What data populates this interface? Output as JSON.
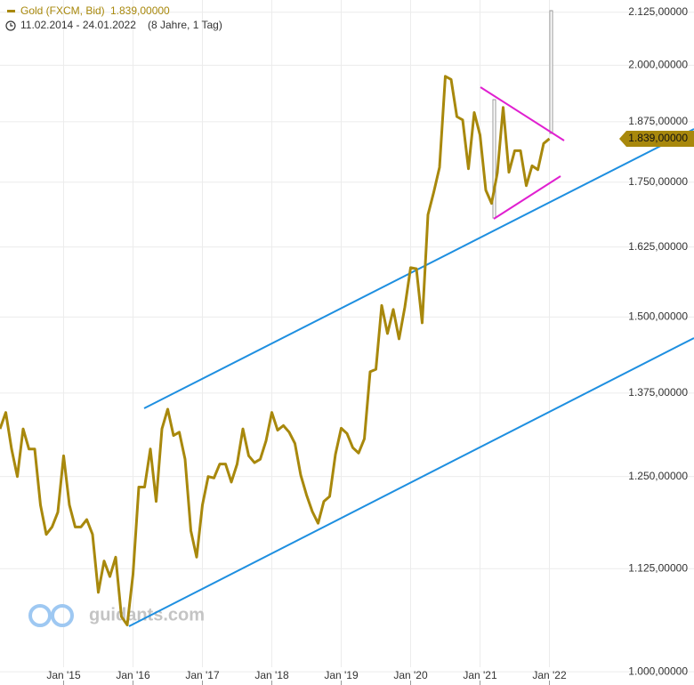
{
  "chart_data": {
    "type": "line",
    "title": "Gold (FXCM, Bid)",
    "date_range": "11.02.2014 - 24.01.2022",
    "period": "(8 Jahre, 1 Tag)",
    "watermark": "guidants.com",
    "log_scale": true,
    "grid": true,
    "current_price": {
      "value": 1839,
      "label": "1.839,00000"
    },
    "x": [
      "2014-02",
      "2014-03",
      "2014-04",
      "2014-05",
      "2014-06",
      "2014-07",
      "2014-08",
      "2014-09",
      "2014-10",
      "2014-11",
      "2014-12",
      "2015-01",
      "2015-02",
      "2015-03",
      "2015-04",
      "2015-05",
      "2015-06",
      "2015-07",
      "2015-08",
      "2015-09",
      "2015-10",
      "2015-11",
      "2015-12",
      "2016-01",
      "2016-02",
      "2016-03",
      "2016-04",
      "2016-05",
      "2016-06",
      "2016-07",
      "2016-08",
      "2016-09",
      "2016-10",
      "2016-11",
      "2016-12",
      "2017-01",
      "2017-02",
      "2017-03",
      "2017-04",
      "2017-05",
      "2017-06",
      "2017-07",
      "2017-08",
      "2017-09",
      "2017-10",
      "2017-11",
      "2017-12",
      "2018-01",
      "2018-02",
      "2018-03",
      "2018-04",
      "2018-05",
      "2018-06",
      "2018-07",
      "2018-08",
      "2018-09",
      "2018-10",
      "2018-11",
      "2018-12",
      "2019-01",
      "2019-02",
      "2019-03",
      "2019-04",
      "2019-05",
      "2019-06",
      "2019-07",
      "2019-08",
      "2019-09",
      "2019-10",
      "2019-11",
      "2019-12",
      "2020-01",
      "2020-02",
      "2020-03",
      "2020-04",
      "2020-05",
      "2020-06",
      "2020-07",
      "2020-08",
      "2020-09",
      "2020-10",
      "2020-11",
      "2020-12",
      "2021-01",
      "2021-02",
      "2021-03",
      "2021-04",
      "2021-05",
      "2021-06",
      "2021-07",
      "2021-08",
      "2021-09",
      "2021-10",
      "2021-11",
      "2021-12",
      "2022-01"
    ],
    "series": [
      {
        "name": "Gold (FXCM, Bid)",
        "color": "#a8880c",
        "values": [
          1320,
          1345,
          1290,
          1250,
          1320,
          1290,
          1290,
          1210,
          1170,
          1180,
          1200,
          1280,
          1210,
          1180,
          1180,
          1190,
          1170,
          1095,
          1135,
          1115,
          1140,
          1065,
          1055,
          1118,
          1235,
          1235,
          1290,
          1215,
          1320,
          1350,
          1310,
          1315,
          1275,
          1175,
          1140,
          1210,
          1250,
          1248,
          1268,
          1268,
          1242,
          1268,
          1320,
          1280,
          1270,
          1275,
          1302,
          1345,
          1318,
          1325,
          1315,
          1298,
          1252,
          1224,
          1201,
          1185,
          1215,
          1222,
          1282,
          1321,
          1313,
          1292,
          1284,
          1305,
          1409,
          1413,
          1520,
          1472,
          1513,
          1463,
          1517,
          1587,
          1585,
          1490,
          1686,
          1730,
          1780,
          1975,
          1968,
          1886,
          1879,
          1777,
          1895,
          1847,
          1734,
          1708,
          1769,
          1906,
          1770,
          1814,
          1814,
          1743,
          1783,
          1775,
          1829,
          1839
        ]
      }
    ],
    "xlim": [
      "2014-02",
      "2024-02"
    ],
    "xticks": [
      {
        "value": "2015-01",
        "label": "Jan '15"
      },
      {
        "value": "2016-01",
        "label": "Jan '16"
      },
      {
        "value": "2017-01",
        "label": "Jan '17"
      },
      {
        "value": "2018-01",
        "label": "Jan '18"
      },
      {
        "value": "2019-01",
        "label": "Jan '19"
      },
      {
        "value": "2020-01",
        "label": "Jan '20"
      },
      {
        "value": "2021-01",
        "label": "Jan '21"
      },
      {
        "value": "2022-01",
        "label": "Jan '22"
      }
    ],
    "ylim": [
      985,
      2155
    ],
    "yticks": [
      {
        "value": 1000,
        "label": "1.000,00000"
      },
      {
        "value": 1125,
        "label": "1.125,00000"
      },
      {
        "value": 1250,
        "label": "1.250,00000"
      },
      {
        "value": 1375,
        "label": "1.375,00000"
      },
      {
        "value": 1500,
        "label": "1.500,00000"
      },
      {
        "value": 1625,
        "label": "1.625,00000"
      },
      {
        "value": 1750,
        "label": "1.750,00000"
      },
      {
        "value": 1875,
        "label": "1.875,00000"
      },
      {
        "value": 2000,
        "label": "2.000,00000"
      },
      {
        "value": 2125,
        "label": "2.125,00000"
      }
    ]
  }
}
